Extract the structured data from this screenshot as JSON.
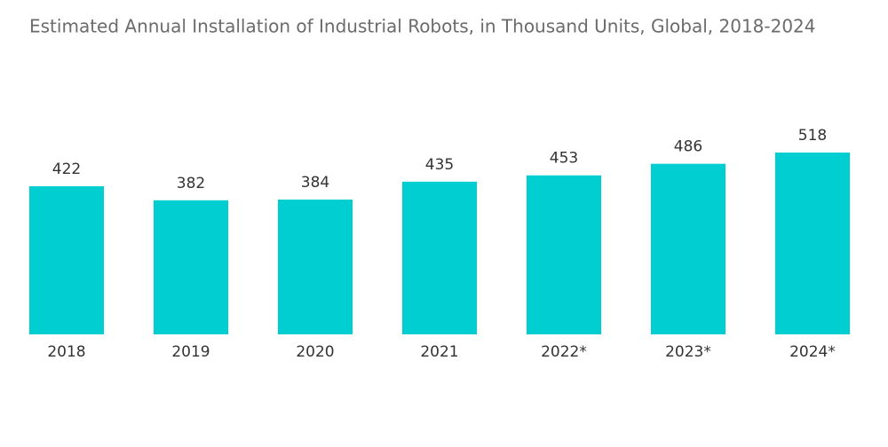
{
  "chart_data": {
    "type": "bar",
    "title": "Estimated Annual Installation of Industrial Robots, in Thousand Units, Global, 2018-2024",
    "categories": [
      "2018",
      "2019",
      "2020",
      "2021",
      "2022*",
      "2023*",
      "2024*"
    ],
    "values": [
      422,
      382,
      384,
      435,
      453,
      486,
      518
    ],
    "color": "#00ced1"
  }
}
